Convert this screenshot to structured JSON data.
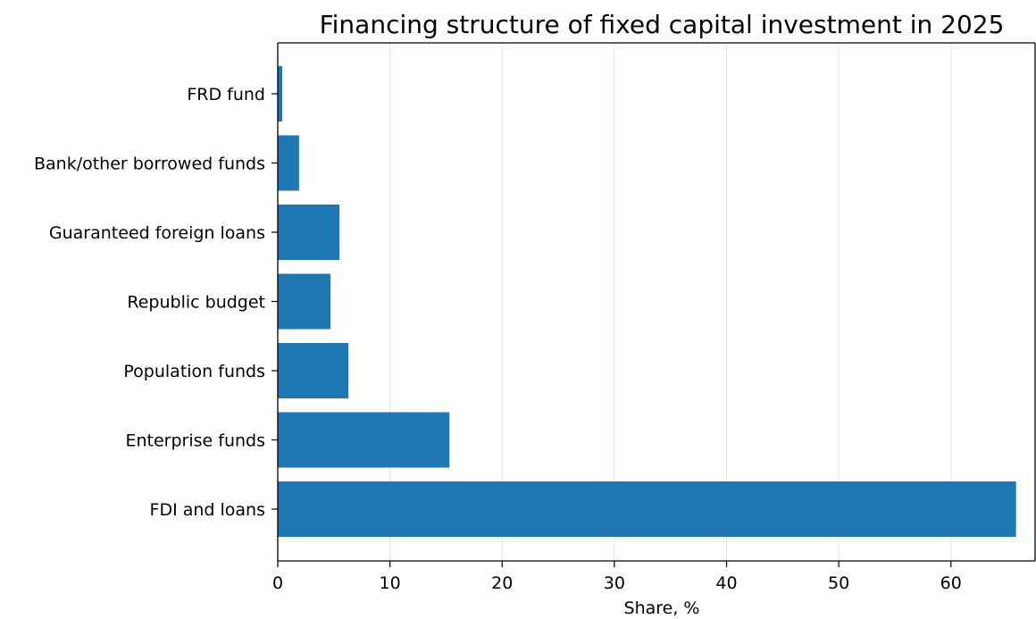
{
  "chart_data": {
    "type": "bar",
    "orientation": "horizontal",
    "title": "Financing structure of fixed capital investment in 2025",
    "xlabel": "Share, %",
    "ylabel": "",
    "categories": [
      "FDI and loans",
      "Enterprise funds",
      "Population funds",
      "Republic budget",
      "Guaranteed foreign loans",
      "Bank/other borrowed funds",
      "FRD fund"
    ],
    "values": [
      65.8,
      15.3,
      6.3,
      4.7,
      5.5,
      1.9,
      0.4
    ],
    "xlim": [
      0,
      67.5
    ],
    "xticks": [
      0,
      10,
      20,
      30,
      40,
      50,
      60
    ],
    "grid": "x",
    "bar_color": "#1f77b4"
  }
}
